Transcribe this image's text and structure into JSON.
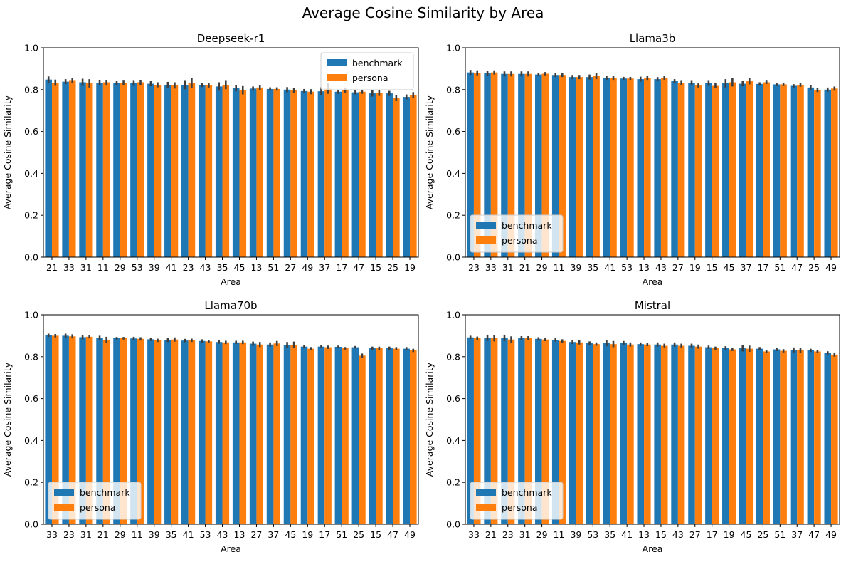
{
  "figure": {
    "title": "Average Cosine Similarity by Area"
  },
  "colors": {
    "benchmark": "#1f77b4",
    "persona": "#ff7f0e",
    "errorbar": "#3d3d3d",
    "axis": "#000000"
  },
  "chart_data": [
    {
      "type": "bar",
      "title": "Deepseek-r1",
      "xlabel": "Area",
      "ylabel": "Average Cosine Similarity",
      "ylim": [
        0,
        1.0
      ],
      "yticks": [
        "0.0",
        "0.2",
        "0.4",
        "0.6",
        "0.8",
        "1.0"
      ],
      "legend": "upper right",
      "categories": [
        "21",
        "33",
        "31",
        "11",
        "29",
        "53",
        "39",
        "41",
        "23",
        "43",
        "35",
        "45",
        "13",
        "51",
        "27",
        "49",
        "37",
        "17",
        "47",
        "15",
        "25",
        "19"
      ],
      "series": [
        {
          "name": "benchmark",
          "values": [
            0.848,
            0.838,
            0.835,
            0.832,
            0.83,
            0.83,
            0.828,
            0.822,
            0.822,
            0.822,
            0.815,
            0.807,
            0.805,
            0.803,
            0.8,
            0.793,
            0.792,
            0.79,
            0.787,
            0.782,
            0.782,
            0.765
          ],
          "err": [
            0.015,
            0.012,
            0.017,
            0.012,
            0.01,
            0.012,
            0.012,
            0.015,
            0.02,
            0.01,
            0.02,
            0.015,
            0.01,
            0.008,
            0.012,
            0.01,
            0.02,
            0.01,
            0.01,
            0.015,
            0.012,
            0.012
          ]
        },
        {
          "name": "persona",
          "values": [
            0.833,
            0.842,
            0.83,
            0.835,
            0.833,
            0.835,
            0.823,
            0.82,
            0.832,
            0.82,
            0.822,
            0.797,
            0.81,
            0.803,
            0.797,
            0.79,
            0.805,
            0.798,
            0.79,
            0.785,
            0.76,
            0.773
          ],
          "err": [
            0.015,
            0.012,
            0.02,
            0.012,
            0.01,
            0.012,
            0.012,
            0.015,
            0.025,
            0.01,
            0.02,
            0.02,
            0.012,
            0.008,
            0.012,
            0.012,
            0.025,
            0.012,
            0.01,
            0.015,
            0.015,
            0.015
          ]
        }
      ]
    },
    {
      "type": "bar",
      "title": "Llama3b",
      "xlabel": "Area",
      "ylabel": "Average Cosine Similarity",
      "ylim": [
        0,
        1.0
      ],
      "yticks": [
        "0.0",
        "0.2",
        "0.4",
        "0.6",
        "0.8",
        "1.0"
      ],
      "legend": "lower left",
      "categories": [
        "23",
        "33",
        "31",
        "21",
        "29",
        "11",
        "39",
        "35",
        "41",
        "53",
        "13",
        "43",
        "27",
        "19",
        "15",
        "45",
        "37",
        "17",
        "51",
        "47",
        "25",
        "49"
      ],
      "series": [
        {
          "name": "benchmark",
          "values": [
            0.882,
            0.878,
            0.875,
            0.875,
            0.872,
            0.87,
            0.86,
            0.86,
            0.855,
            0.853,
            0.85,
            0.85,
            0.84,
            0.832,
            0.83,
            0.83,
            0.828,
            0.827,
            0.825,
            0.818,
            0.81,
            0.8
          ],
          "err": [
            0.012,
            0.012,
            0.012,
            0.012,
            0.008,
            0.01,
            0.01,
            0.012,
            0.012,
            0.008,
            0.012,
            0.01,
            0.01,
            0.01,
            0.012,
            0.02,
            0.012,
            0.008,
            0.008,
            0.008,
            0.01,
            0.01
          ]
        },
        {
          "name": "persona",
          "values": [
            0.88,
            0.882,
            0.875,
            0.875,
            0.876,
            0.87,
            0.86,
            0.865,
            0.855,
            0.853,
            0.855,
            0.855,
            0.832,
            0.82,
            0.818,
            0.835,
            0.84,
            0.835,
            0.825,
            0.822,
            0.798,
            0.805
          ],
          "err": [
            0.012,
            0.01,
            0.012,
            0.012,
            0.008,
            0.01,
            0.01,
            0.015,
            0.012,
            0.008,
            0.012,
            0.01,
            0.01,
            0.01,
            0.012,
            0.02,
            0.015,
            0.008,
            0.008,
            0.008,
            0.01,
            0.01
          ]
        }
      ]
    },
    {
      "type": "bar",
      "title": "Llama70b",
      "xlabel": "Area",
      "ylabel": "Average Cosine Similarity",
      "ylim": [
        0,
        1.0
      ],
      "yticks": [
        "0.0",
        "0.2",
        "0.4",
        "0.6",
        "0.8",
        "1.0"
      ],
      "legend": "lower left",
      "categories": [
        "33",
        "23",
        "31",
        "21",
        "29",
        "11",
        "39",
        "35",
        "41",
        "53",
        "43",
        "13",
        "27",
        "37",
        "45",
        "19",
        "17",
        "51",
        "25",
        "15",
        "47",
        "49"
      ],
      "series": [
        {
          "name": "benchmark",
          "values": [
            0.902,
            0.9,
            0.893,
            0.89,
            0.888,
            0.887,
            0.883,
            0.88,
            0.877,
            0.875,
            0.87,
            0.868,
            0.862,
            0.858,
            0.855,
            0.848,
            0.848,
            0.847,
            0.845,
            0.84,
            0.84,
            0.838
          ],
          "err": [
            0.008,
            0.01,
            0.01,
            0.01,
            0.006,
            0.008,
            0.008,
            0.01,
            0.008,
            0.008,
            0.008,
            0.008,
            0.01,
            0.01,
            0.015,
            0.008,
            0.008,
            0.006,
            0.006,
            0.008,
            0.008,
            0.008
          ]
        },
        {
          "name": "persona",
          "values": [
            0.9,
            0.897,
            0.895,
            0.88,
            0.888,
            0.885,
            0.878,
            0.882,
            0.878,
            0.873,
            0.868,
            0.868,
            0.858,
            0.863,
            0.857,
            0.838,
            0.845,
            0.84,
            0.805,
            0.84,
            0.838,
            0.83
          ],
          "err": [
            0.008,
            0.01,
            0.008,
            0.015,
            0.006,
            0.008,
            0.008,
            0.01,
            0.008,
            0.008,
            0.008,
            0.008,
            0.012,
            0.012,
            0.015,
            0.008,
            0.008,
            0.006,
            0.01,
            0.008,
            0.008,
            0.008
          ]
        }
      ]
    },
    {
      "type": "bar",
      "title": "Mistral",
      "xlabel": "Area",
      "ylabel": "Average Cosine Similarity",
      "ylim": [
        0,
        1.0
      ],
      "yticks": [
        "0.0",
        "0.2",
        "0.4",
        "0.6",
        "0.8",
        "1.0"
      ],
      "legend": "lower left",
      "categories": [
        "33",
        "21",
        "23",
        "31",
        "29",
        "11",
        "39",
        "53",
        "35",
        "41",
        "13",
        "15",
        "43",
        "27",
        "17",
        "19",
        "45",
        "25",
        "51",
        "37",
        "47",
        "49"
      ],
      "series": [
        {
          "name": "benchmark",
          "values": [
            0.892,
            0.89,
            0.89,
            0.888,
            0.885,
            0.88,
            0.87,
            0.865,
            0.865,
            0.865,
            0.86,
            0.858,
            0.858,
            0.852,
            0.845,
            0.842,
            0.84,
            0.838,
            0.835,
            0.832,
            0.83,
            0.818
          ],
          "err": [
            0.008,
            0.015,
            0.015,
            0.01,
            0.008,
            0.008,
            0.01,
            0.008,
            0.015,
            0.01,
            0.008,
            0.01,
            0.01,
            0.01,
            0.008,
            0.008,
            0.015,
            0.008,
            0.008,
            0.012,
            0.008,
            0.008
          ]
        },
        {
          "name": "persona",
          "values": [
            0.888,
            0.888,
            0.882,
            0.888,
            0.882,
            0.875,
            0.868,
            0.86,
            0.86,
            0.858,
            0.858,
            0.852,
            0.852,
            0.848,
            0.84,
            0.835,
            0.838,
            0.825,
            0.828,
            0.83,
            0.825,
            0.81
          ],
          "err": [
            0.008,
            0.015,
            0.015,
            0.01,
            0.008,
            0.008,
            0.01,
            0.008,
            0.015,
            0.01,
            0.008,
            0.01,
            0.01,
            0.01,
            0.008,
            0.008,
            0.015,
            0.008,
            0.008,
            0.012,
            0.008,
            0.01
          ]
        }
      ]
    }
  ]
}
